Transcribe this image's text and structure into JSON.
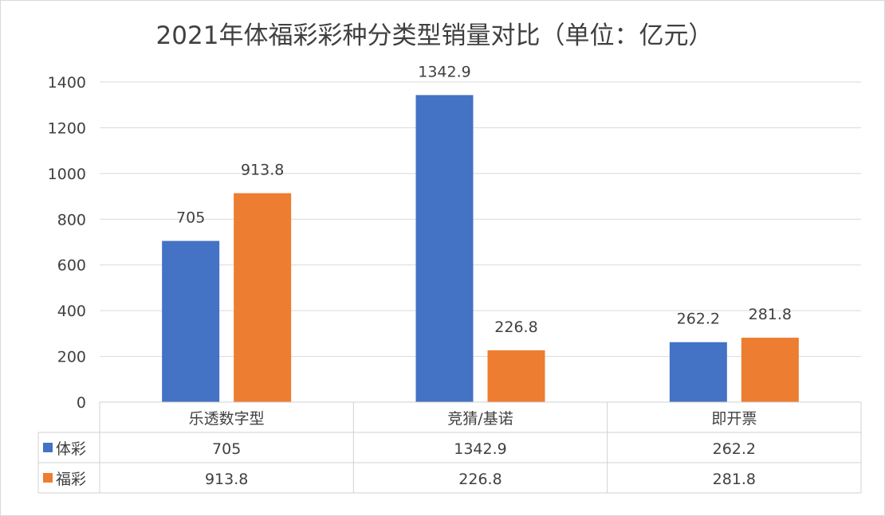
{
  "chart_data": {
    "type": "bar",
    "title": "2021年体福彩彩种分类型销量对比（单位：亿元）",
    "categories": [
      "乐透数字型",
      "竞猜/基诺",
      "即开票"
    ],
    "series": [
      {
        "name": "体彩",
        "values": [
          705,
          1342.9,
          262.2
        ],
        "value_labels": [
          "705",
          "1342.9",
          "262.2"
        ],
        "color": "#4472c4"
      },
      {
        "name": "福彩",
        "values": [
          913.8,
          226.8,
          281.8
        ],
        "value_labels": [
          "913.8",
          "226.8",
          "281.8"
        ],
        "color": "#ed7d31"
      }
    ],
    "ylim": [
      0,
      1400
    ],
    "yticks": [
      "0",
      "200",
      "400",
      "600",
      "800",
      "1000",
      "1200",
      "1400"
    ],
    "grid": true,
    "data_table": true
  }
}
